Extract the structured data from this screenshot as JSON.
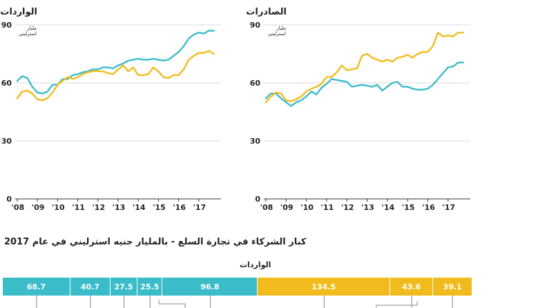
{
  "chart_data": [
    {
      "type": "line",
      "title": "الواردات",
      "unit_label": "مليار استرليني",
      "ylim": [
        0,
        90
      ],
      "yticks": [
        0,
        30,
        60,
        90
      ],
      "xticks": [
        "08",
        "09",
        "10",
        "11",
        "12",
        "13",
        "14",
        "15",
        "16",
        "17"
      ],
      "grid": true,
      "series": [
        {
          "color": "#3bbcc9",
          "x": [
            2008.0,
            2008.25,
            2008.5,
            2008.75,
            2009.0,
            2009.25,
            2009.5,
            2009.75,
            2010.0,
            2010.25,
            2010.5,
            2010.75,
            2011.0,
            2011.25,
            2011.5,
            2011.75,
            2012.0,
            2012.25,
            2012.5,
            2012.75,
            2013.0,
            2013.25,
            2013.5,
            2013.75,
            2014.0,
            2014.25,
            2014.5,
            2014.75,
            2015.0,
            2015.25,
            2015.5,
            2015.75,
            2016.0,
            2016.25,
            2016.5,
            2016.75,
            2017.0,
            2017.25,
            2017.5,
            2017.75
          ],
          "values": [
            61,
            63.5,
            62.5,
            58,
            55,
            54.5,
            55.5,
            59,
            59,
            62,
            62,
            64,
            64.5,
            65.5,
            66,
            67,
            67,
            68,
            68,
            67.5,
            69,
            70,
            71.5,
            72,
            72.5,
            72,
            72,
            72.5,
            72,
            71.5,
            72,
            74,
            76,
            79,
            83,
            85,
            86,
            85.5,
            87,
            87
          ]
        },
        {
          "color": "#f2bb1d",
          "x": [
            2008.0,
            2008.25,
            2008.5,
            2008.75,
            2009.0,
            2009.25,
            2009.5,
            2009.75,
            2010.0,
            2010.25,
            2010.5,
            2010.75,
            2011.0,
            2011.25,
            2011.5,
            2011.75,
            2012.0,
            2012.25,
            2012.5,
            2012.75,
            2013.0,
            2013.25,
            2013.5,
            2013.75,
            2014.0,
            2014.25,
            2014.5,
            2014.75,
            2015.0,
            2015.25,
            2015.5,
            2015.75,
            2016.0,
            2016.25,
            2016.5,
            2016.75,
            2017.0,
            2017.25,
            2017.5,
            2017.75
          ],
          "values": [
            52,
            55.5,
            56,
            54.5,
            51.5,
            51,
            52,
            55,
            59,
            61,
            63,
            62,
            63,
            64.5,
            65.5,
            66,
            66,
            66,
            65,
            64.5,
            67,
            69,
            66,
            68,
            64,
            64,
            64.5,
            68,
            66,
            63,
            62.5,
            64,
            64,
            67,
            72,
            74,
            75.5,
            75.5,
            76.5,
            75
          ]
        }
      ]
    },
    {
      "type": "line",
      "title": "الصادرات",
      "unit_label": "مليار استرليني",
      "ylim": [
        0,
        90
      ],
      "yticks": [
        0,
        30,
        60,
        90
      ],
      "xticks": [
        "08",
        "09",
        "10",
        "11",
        "12",
        "13",
        "14",
        "15",
        "16",
        "17"
      ],
      "grid": true,
      "series": [
        {
          "color": "#3bbcc9",
          "x": [
            2008.0,
            2008.25,
            2008.5,
            2008.75,
            2009.0,
            2009.25,
            2009.5,
            2009.75,
            2010.0,
            2010.25,
            2010.5,
            2010.75,
            2011.0,
            2011.25,
            2011.5,
            2011.75,
            2012.0,
            2012.25,
            2012.5,
            2012.75,
            2013.0,
            2013.25,
            2013.5,
            2013.75,
            2014.0,
            2014.25,
            2014.5,
            2014.75,
            2015.0,
            2015.25,
            2015.5,
            2015.75,
            2016.0,
            2016.25,
            2016.5,
            2016.75,
            2017.0,
            2017.25,
            2017.5,
            2017.75
          ],
          "values": [
            52,
            54.5,
            54.5,
            52,
            50,
            48,
            50,
            51,
            53,
            55.5,
            54,
            57.5,
            59.5,
            62,
            61.5,
            61,
            60.5,
            58,
            58.5,
            59,
            58.5,
            58,
            59,
            56,
            58,
            60,
            60.5,
            58,
            58,
            57,
            56.5,
            56.5,
            57,
            59,
            62,
            65,
            68,
            68.5,
            70.5,
            70.5
          ]
        },
        {
          "color": "#f2bb1d",
          "x": [
            2008.0,
            2008.25,
            2008.5,
            2008.75,
            2009.0,
            2009.25,
            2009.5,
            2009.75,
            2010.0,
            2010.25,
            2010.5,
            2010.75,
            2011.0,
            2011.25,
            2011.5,
            2011.75,
            2012.0,
            2012.25,
            2012.5,
            2012.75,
            2013.0,
            2013.25,
            2013.5,
            2013.75,
            2014.0,
            2014.25,
            2014.5,
            2014.75,
            2015.0,
            2015.25,
            2015.5,
            2015.75,
            2016.0,
            2016.25,
            2016.5,
            2016.75,
            2017.0,
            2017.25,
            2017.5,
            2017.75
          ],
          "values": [
            50,
            53,
            55,
            54.5,
            51,
            50.5,
            51.5,
            53,
            55.5,
            57,
            58,
            59.5,
            63,
            63,
            65.5,
            69,
            66.5,
            67,
            67.5,
            74,
            75,
            73,
            72,
            71,
            72,
            71,
            73,
            73.5,
            74.5,
            73,
            75,
            76,
            76,
            79,
            86,
            84,
            84.5,
            84,
            86,
            86
          ]
        }
      ]
    }
  ],
  "top_strip": "… … … … … … … … … … … … … …",
  "partners": {
    "title": "كبار الشركاء في تجارة السلع - بالمليار جنيه استرليني في عام 2017",
    "caption": "الواردات",
    "segments": [
      {
        "value": "68.7",
        "amount": 68.7,
        "color": "#3bbcc9"
      },
      {
        "value": "40.7",
        "amount": 40.7,
        "color": "#3bbcc9"
      },
      {
        "value": "27.5",
        "amount": 27.5,
        "color": "#3bbcc9"
      },
      {
        "value": "25.5",
        "amount": 25.5,
        "color": "#3bbcc9"
      },
      {
        "value": "96.8",
        "amount": 96.8,
        "color": "#3bbcc9"
      },
      {
        "value": "134.5",
        "amount": 134.5,
        "color": "#f2bb1d"
      },
      {
        "value": "43.6",
        "amount": 43.6,
        "color": "#f2bb1d"
      },
      {
        "value": "39.1",
        "amount": 39.1,
        "color": "#f2bb1d"
      }
    ]
  }
}
